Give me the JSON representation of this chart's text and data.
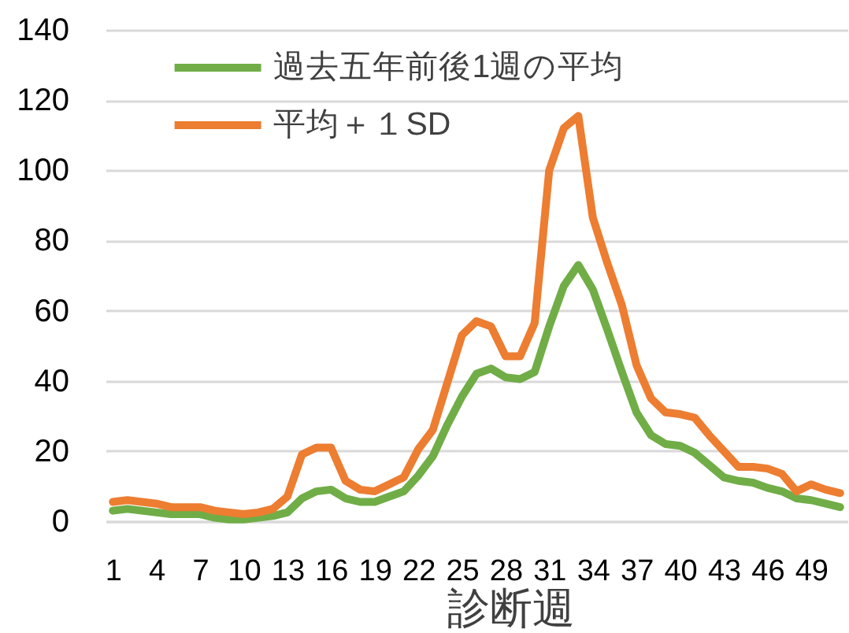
{
  "chart_data": {
    "type": "line",
    "xlabel": "診断週",
    "categories": [
      "1",
      null,
      null,
      "4",
      null,
      null,
      "7",
      null,
      null,
      "10",
      null,
      null,
      "13",
      null,
      null,
      "16",
      null,
      null,
      "19",
      null,
      null,
      "22",
      null,
      null,
      "25",
      null,
      null,
      "28",
      null,
      null,
      "31",
      null,
      null,
      "34",
      null,
      null,
      "37",
      null,
      null,
      "40",
      null,
      null,
      "43",
      null,
      null,
      "46",
      null,
      null,
      "49",
      null,
      null
    ],
    "series": [
      {
        "name": "過去五年前後1週の平均",
        "color": "#70ad47",
        "values": [
          3,
          3.5,
          3,
          2.5,
          2,
          2,
          2,
          1,
          0.5,
          0.5,
          1,
          1.5,
          2.5,
          6.5,
          8.5,
          9,
          6.5,
          5.5,
          5.5,
          7,
          8.5,
          13,
          18.5,
          27.5,
          35.5,
          42,
          43.5,
          41,
          40.5,
          42.5,
          55.5,
          67,
          73,
          66,
          54.5,
          42.5,
          31,
          24.5,
          22,
          21.5,
          19.5,
          16,
          12.5,
          11.5,
          11,
          9.5,
          8.5,
          6.5,
          6,
          5,
          4
        ]
      },
      {
        "name": "平均＋１SD",
        "color": "#ed7d31",
        "values": [
          5.5,
          6,
          5.5,
          5,
          4,
          4,
          4,
          3,
          2.5,
          2,
          2.5,
          3.5,
          7,
          19,
          21,
          21,
          11.5,
          9,
          8.5,
          10.5,
          12.5,
          20.5,
          26,
          39.5,
          53,
          57,
          55.5,
          47,
          47,
          56.5,
          100,
          112,
          115.5,
          86.5,
          73.5,
          61.5,
          44.5,
          35,
          31,
          30.5,
          29.5,
          24.5,
          20,
          15.5,
          15.5,
          15,
          13.5,
          8.5,
          10.5,
          9,
          8
        ]
      }
    ],
    "ylim": [
      0,
      140
    ],
    "yticks": [
      0,
      20,
      40,
      60,
      80,
      100,
      120,
      140
    ],
    "grid": "y",
    "legend": "top left",
    "marker": "none",
    "line_style": "solid"
  }
}
